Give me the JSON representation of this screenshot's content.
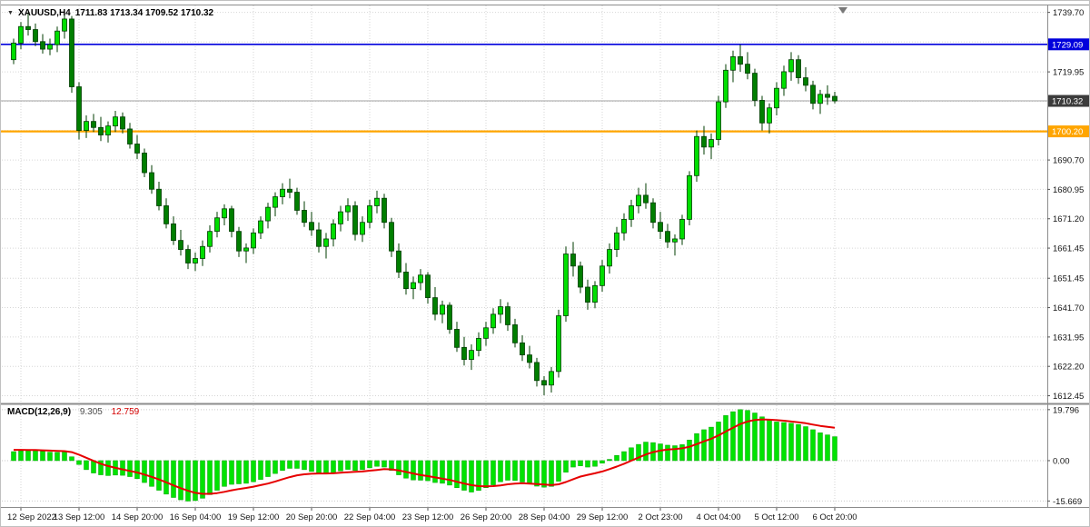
{
  "app": {
    "dropdown_icon": "▼",
    "symbol_period": "XAUUSD,H4",
    "ohlc_readout": "1711.83 1713.34 1709.52 1710.32"
  },
  "macd_panel": {
    "label": "MACD(12,26,9)",
    "main_value": "9.305",
    "signal_value": "12.759"
  },
  "colors": {
    "background": "#FFFFFF",
    "grid": "#D6D6D6",
    "frame": "#8C8C8C",
    "tick": "#555555",
    "candle_bull": "#00DE00",
    "candle_bear": "#007E00",
    "candle_border": "#003C00",
    "candle_wick": "#003C00",
    "macd_hist": "#00E300",
    "macd_hist_border": "#00A300",
    "macd_signal": "#E60000",
    "shift_marker": "#787878"
  },
  "chart_data": {
    "type": "candlestick",
    "symbol": "XAUUSD",
    "timeframe": "H4",
    "title": "XAUUSD,H4",
    "y_axis": {
      "min": 1610.5,
      "max": 1742.0,
      "labels": [
        {
          "p": 1739.7,
          "t": "1739.70"
        },
        {
          "p": 1719.95,
          "t": "1719.95"
        },
        {
          "p": 1690.7,
          "t": "1690.70"
        },
        {
          "p": 1680.95,
          "t": "1680.95"
        },
        {
          "p": 1671.2,
          "t": "1671.20"
        },
        {
          "p": 1661.45,
          "t": "1661.45"
        },
        {
          "p": 1651.45,
          "t": "1651.45"
        },
        {
          "p": 1641.7,
          "t": "1641.70"
        },
        {
          "p": 1631.95,
          "t": "1631.95"
        },
        {
          "p": 1622.2,
          "t": "1622.20"
        },
        {
          "p": 1612.45,
          "t": "1612.45"
        }
      ],
      "grid_extra": [
        1729.85,
        1710.2,
        1700.45
      ]
    },
    "x_ticks": [
      {
        "i": 1,
        "label": "12 Sep 2022"
      },
      {
        "i": 9,
        "label": "13 Sep 12:00"
      },
      {
        "i": 17,
        "label": "14 Sep 20:00"
      },
      {
        "i": 25,
        "label": "16 Sep 04:00"
      },
      {
        "i": 33,
        "label": "19 Sep 12:00"
      },
      {
        "i": 41,
        "label": "20 Sep 20:00"
      },
      {
        "i": 49,
        "label": "22 Sep 04:00"
      },
      {
        "i": 57,
        "label": "23 Sep 12:00"
      },
      {
        "i": 65,
        "label": "26 Sep 20:00"
      },
      {
        "i": 73,
        "label": "28 Sep 04:00"
      },
      {
        "i": 81,
        "label": "29 Sep 12:00"
      },
      {
        "i": 89,
        "label": "2 Oct 23:00"
      },
      {
        "i": 97,
        "label": "4 Oct 04:00"
      },
      {
        "i": 105,
        "label": "5 Oct 12:00"
      },
      {
        "i": 113,
        "label": "6 Oct 20:00"
      }
    ],
    "hlines": [
      {
        "price": 1729.09,
        "label": "1729.09",
        "color": "#0000DC",
        "width": 1.6,
        "name": "resistance-line"
      },
      {
        "price": 1700.2,
        "label": "1700.20",
        "color": "#FFA500",
        "width": 2.2,
        "name": "support-line"
      }
    ],
    "current_price": {
      "price": 1710.32,
      "label": "1710.32",
      "line_color": "#A0A0A0",
      "bg": "#3C3C3C"
    },
    "candles": [
      [
        1724.0,
        1731.0,
        1722.5,
        1729.5
      ],
      [
        1729.5,
        1736.5,
        1727.5,
        1735.0
      ],
      [
        1735.0,
        1739.7,
        1732.0,
        1734.0
      ],
      [
        1734.0,
        1736.0,
        1728.5,
        1730.0
      ],
      [
        1730.0,
        1732.5,
        1726.0,
        1727.5
      ],
      [
        1727.5,
        1731.0,
        1725.5,
        1729.0
      ],
      [
        1729.0,
        1735.0,
        1726.5,
        1733.5
      ],
      [
        1733.5,
        1739.4,
        1731.0,
        1737.5
      ],
      [
        1737.5,
        1738.5,
        1713.0,
        1715.0
      ],
      [
        1715.0,
        1716.5,
        1697.5,
        1700.5
      ],
      [
        1700.5,
        1705.5,
        1698.0,
        1703.5
      ],
      [
        1703.5,
        1706.0,
        1700.0,
        1701.5
      ],
      [
        1701.5,
        1705.0,
        1697.0,
        1699.0
      ],
      [
        1699.0,
        1703.5,
        1696.5,
        1702.0
      ],
      [
        1702.0,
        1707.0,
        1700.0,
        1705.0
      ],
      [
        1705.0,
        1706.5,
        1699.5,
        1701.0
      ],
      [
        1701.0,
        1703.0,
        1694.5,
        1696.0
      ],
      [
        1696.0,
        1699.0,
        1691.0,
        1693.0
      ],
      [
        1693.0,
        1694.5,
        1685.0,
        1686.5
      ],
      [
        1686.5,
        1689.0,
        1679.5,
        1681.0
      ],
      [
        1681.0,
        1683.5,
        1674.0,
        1675.5
      ],
      [
        1675.5,
        1678.0,
        1668.0,
        1669.5
      ],
      [
        1669.5,
        1672.0,
        1662.5,
        1664.0
      ],
      [
        1664.0,
        1667.5,
        1659.0,
        1661.0
      ],
      [
        1661.0,
        1662.5,
        1654.5,
        1656.5
      ],
      [
        1656.5,
        1660.0,
        1653.8,
        1658.0
      ],
      [
        1658.0,
        1664.0,
        1655.5,
        1662.0
      ],
      [
        1662.0,
        1669.0,
        1660.0,
        1667.0
      ],
      [
        1667.0,
        1673.5,
        1665.0,
        1671.5
      ],
      [
        1671.5,
        1676.0,
        1669.0,
        1674.5
      ],
      [
        1674.5,
        1675.5,
        1665.0,
        1667.0
      ],
      [
        1667.0,
        1668.5,
        1658.5,
        1660.5
      ],
      [
        1660.5,
        1663.0,
        1656.5,
        1661.5
      ],
      [
        1661.5,
        1668.0,
        1659.5,
        1666.5
      ],
      [
        1666.5,
        1672.0,
        1664.5,
        1670.5
      ],
      [
        1670.5,
        1676.5,
        1668.0,
        1675.0
      ],
      [
        1675.0,
        1680.0,
        1672.0,
        1678.5
      ],
      [
        1678.5,
        1683.0,
        1676.0,
        1681.0
      ],
      [
        1681.0,
        1684.5,
        1678.0,
        1680.0
      ],
      [
        1680.0,
        1681.5,
        1672.5,
        1674.0
      ],
      [
        1674.0,
        1677.0,
        1668.5,
        1670.0
      ],
      [
        1670.0,
        1673.5,
        1665.5,
        1667.5
      ],
      [
        1667.5,
        1670.0,
        1660.0,
        1662.0
      ],
      [
        1662.0,
        1666.5,
        1658.0,
        1664.5
      ],
      [
        1664.5,
        1671.0,
        1662.0,
        1669.5
      ],
      [
        1669.5,
        1675.5,
        1667.0,
        1673.5
      ],
      [
        1673.5,
        1678.0,
        1670.5,
        1675.5
      ],
      [
        1675.5,
        1677.0,
        1664.0,
        1666.0
      ],
      [
        1666.0,
        1672.0,
        1663.5,
        1670.0
      ],
      [
        1670.0,
        1677.5,
        1668.0,
        1675.5
      ],
      [
        1675.5,
        1680.5,
        1673.0,
        1678.0
      ],
      [
        1678.0,
        1679.5,
        1668.0,
        1670.0
      ],
      [
        1670.0,
        1671.5,
        1658.5,
        1660.5
      ],
      [
        1660.5,
        1663.0,
        1651.5,
        1653.5
      ],
      [
        1653.5,
        1656.5,
        1646.0,
        1648.0
      ],
      [
        1648.0,
        1652.0,
        1644.5,
        1650.0
      ],
      [
        1650.0,
        1654.5,
        1647.5,
        1652.5
      ],
      [
        1652.5,
        1653.5,
        1643.0,
        1645.0
      ],
      [
        1645.0,
        1648.5,
        1637.5,
        1639.5
      ],
      [
        1639.5,
        1644.0,
        1636.5,
        1642.5
      ],
      [
        1642.5,
        1643.5,
        1633.0,
        1634.5
      ],
      [
        1634.5,
        1637.0,
        1627.0,
        1628.5
      ],
      [
        1628.5,
        1632.0,
        1622.5,
        1624.5
      ],
      [
        1624.5,
        1629.5,
        1621.0,
        1627.5
      ],
      [
        1627.5,
        1633.5,
        1625.5,
        1631.5
      ],
      [
        1631.5,
        1637.0,
        1629.0,
        1635.0
      ],
      [
        1635.0,
        1641.5,
        1633.0,
        1639.5
      ],
      [
        1639.5,
        1644.5,
        1636.5,
        1642.0
      ],
      [
        1642.0,
        1643.5,
        1634.0,
        1636.0
      ],
      [
        1636.0,
        1638.0,
        1628.5,
        1630.0
      ],
      [
        1630.0,
        1632.5,
        1624.0,
        1626.0
      ],
      [
        1626.0,
        1629.0,
        1621.5,
        1623.5
      ],
      [
        1623.5,
        1625.0,
        1615.5,
        1617.5
      ],
      [
        1617.5,
        1619.0,
        1612.6,
        1616.0
      ],
      [
        1616.0,
        1622.0,
        1613.5,
        1620.5
      ],
      [
        1620.5,
        1641.0,
        1618.5,
        1639.0
      ],
      [
        1639.0,
        1662.0,
        1637.0,
        1659.5
      ],
      [
        1659.5,
        1663.5,
        1652.0,
        1655.5
      ],
      [
        1655.5,
        1657.0,
        1646.5,
        1648.5
      ],
      [
        1648.5,
        1651.0,
        1641.0,
        1643.5
      ],
      [
        1643.5,
        1650.5,
        1641.5,
        1649.0
      ],
      [
        1649.0,
        1657.5,
        1647.0,
        1655.5
      ],
      [
        1655.5,
        1663.0,
        1653.0,
        1661.0
      ],
      [
        1661.0,
        1668.5,
        1658.5,
        1666.5
      ],
      [
        1666.5,
        1673.0,
        1664.0,
        1671.0
      ],
      [
        1671.0,
        1677.5,
        1668.5,
        1675.5
      ],
      [
        1675.5,
        1681.5,
        1673.0,
        1679.0
      ],
      [
        1679.0,
        1683.0,
        1674.5,
        1676.5
      ],
      [
        1676.5,
        1678.0,
        1668.0,
        1670.0
      ],
      [
        1670.0,
        1673.5,
        1664.5,
        1667.0
      ],
      [
        1667.0,
        1669.5,
        1661.5,
        1663.5
      ],
      [
        1663.5,
        1666.0,
        1659.0,
        1664.5
      ],
      [
        1664.5,
        1672.5,
        1662.5,
        1671.0
      ],
      [
        1671.0,
        1687.0,
        1669.0,
        1685.5
      ],
      [
        1685.5,
        1700.5,
        1683.5,
        1698.5
      ],
      [
        1698.5,
        1702.0,
        1692.5,
        1695.0
      ],
      [
        1695.0,
        1699.5,
        1691.0,
        1697.5
      ],
      [
        1697.5,
        1712.0,
        1695.5,
        1710.0
      ],
      [
        1710.0,
        1722.5,
        1708.0,
        1720.5
      ],
      [
        1720.5,
        1727.0,
        1716.5,
        1725.0
      ],
      [
        1725.0,
        1729.0,
        1720.0,
        1722.5
      ],
      [
        1722.5,
        1726.5,
        1717.5,
        1719.5
      ],
      [
        1719.5,
        1721.0,
        1708.5,
        1710.5
      ],
      [
        1710.5,
        1712.0,
        1700.5,
        1703.0
      ],
      [
        1703.0,
        1709.5,
        1699.5,
        1708.0
      ],
      [
        1708.0,
        1716.5,
        1705.5,
        1714.5
      ],
      [
        1714.5,
        1722.0,
        1712.0,
        1720.0
      ],
      [
        1720.0,
        1726.5,
        1717.0,
        1724.0
      ],
      [
        1724.0,
        1725.5,
        1716.0,
        1718.0
      ],
      [
        1718.0,
        1721.5,
        1713.5,
        1715.5
      ],
      [
        1715.5,
        1717.0,
        1707.5,
        1709.5
      ],
      [
        1709.5,
        1714.0,
        1706.0,
        1712.5
      ],
      [
        1712.5,
        1715.5,
        1709.0,
        1711.5
      ],
      [
        1711.83,
        1713.34,
        1709.52,
        1710.32
      ]
    ],
    "macd": {
      "label": "MACD(12,26,9)",
      "main_value": 9.305,
      "signal_value": 12.759,
      "range": {
        "min": -18.0,
        "max": 21.5
      },
      "axis_labels": [
        {
          "v": 19.796,
          "t": "19.796"
        },
        {
          "v": 0,
          "t": "0.00"
        },
        {
          "v": -15.669,
          "t": "-15.669"
        }
      ],
      "hist": [
        3.5,
        3.8,
        4.0,
        3.9,
        3.6,
        3.3,
        3.2,
        3.4,
        1.5,
        -1.5,
        -3.5,
        -4.8,
        -5.5,
        -5.8,
        -5.6,
        -5.7,
        -6.2,
        -7.0,
        -8.5,
        -10.0,
        -11.5,
        -13.0,
        -14.3,
        -15.2,
        -15.7,
        -15.5,
        -14.6,
        -13.2,
        -11.5,
        -10.0,
        -9.2,
        -9.0,
        -8.8,
        -8.2,
        -7.3,
        -6.2,
        -5.0,
        -3.8,
        -3.0,
        -3.0,
        -3.5,
        -4.2,
        -4.8,
        -5.0,
        -4.7,
        -4.0,
        -3.4,
        -3.8,
        -3.5,
        -2.8,
        -2.2,
        -2.5,
        -3.8,
        -5.5,
        -6.8,
        -7.5,
        -7.6,
        -7.8,
        -8.5,
        -8.8,
        -9.5,
        -10.5,
        -11.5,
        -12.2,
        -11.6,
        -10.5,
        -9.4,
        -8.2,
        -7.6,
        -7.7,
        -8.3,
        -9.1,
        -9.9,
        -10.3,
        -10.0,
        -8.0,
        -4.5,
        -2.5,
        -2.0,
        -2.5,
        -2.2,
        -1.0,
        0.5,
        2.0,
        3.5,
        5.0,
        6.3,
        7.2,
        7.0,
        6.5,
        6.0,
        5.8,
        6.2,
        8.0,
        10.5,
        12.0,
        13.0,
        15.0,
        17.5,
        19.0,
        19.8,
        19.5,
        18.5,
        17.0,
        15.8,
        15.0,
        14.8,
        14.5,
        14.0,
        13.2,
        12.0,
        10.8,
        10.0,
        9.305
      ],
      "signal": [
        4.2,
        4.2,
        4.1,
        4.1,
        4.0,
        3.9,
        3.8,
        3.7,
        3.3,
        2.3,
        1.1,
        -0.1,
        -1.2,
        -2.1,
        -2.8,
        -3.4,
        -4.0,
        -4.6,
        -5.4,
        -6.3,
        -7.3,
        -8.4,
        -9.6,
        -10.7,
        -11.7,
        -12.5,
        -12.9,
        -12.9,
        -12.6,
        -12.1,
        -11.5,
        -11.0,
        -10.6,
        -10.1,
        -9.5,
        -8.9,
        -8.1,
        -7.2,
        -6.4,
        -5.7,
        -5.3,
        -5.1,
        -5.0,
        -5.0,
        -4.9,
        -4.7,
        -4.5,
        -4.3,
        -4.2,
        -3.9,
        -3.6,
        -3.3,
        -3.4,
        -3.8,
        -4.4,
        -5.0,
        -5.6,
        -6.0,
        -6.5,
        -7.0,
        -7.5,
        -8.2,
        -8.9,
        -9.5,
        -9.9,
        -10.0,
        -9.9,
        -9.6,
        -9.2,
        -8.9,
        -8.8,
        -8.9,
        -9.1,
        -9.3,
        -9.5,
        -9.2,
        -8.3,
        -7.2,
        -6.2,
        -5.5,
        -4.9,
        -4.2,
        -3.3,
        -2.3,
        -1.2,
        0.0,
        1.2,
        2.4,
        3.3,
        3.9,
        4.3,
        4.5,
        4.8,
        5.4,
        6.4,
        7.5,
        8.5,
        9.8,
        11.3,
        12.8,
        14.2,
        15.2,
        15.8,
        16.0,
        15.9,
        15.7,
        15.5,
        15.2,
        14.9,
        14.5,
        14.0,
        13.5,
        13.1,
        12.759
      ]
    }
  }
}
